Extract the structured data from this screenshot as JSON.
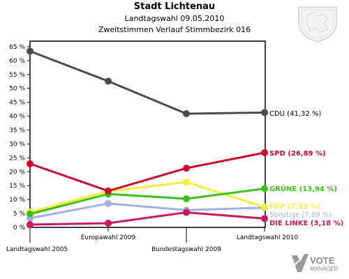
{
  "header": {
    "title": "Stadt Lichtenau",
    "subtitle": "Landtagswahl 09.05.2010",
    "subtitle2": "Zweitstimmen Verlauf Stimmbezirk 016"
  },
  "chart_data": {
    "type": "line",
    "categories": [
      "Landtagswahl 2005",
      "Europawahl 2009",
      "Bundestagswahl 2009",
      "Landtagswahl 2010"
    ],
    "y_ticks": [
      "0 %",
      "5 %",
      "10 %",
      "15 %",
      "20 %",
      "25 %",
      "30 %",
      "35 %",
      "40 %",
      "45 %",
      "50 %",
      "55 %",
      "60 %",
      "65 %"
    ],
    "ylim": [
      0,
      67
    ],
    "grid": false,
    "series": [
      {
        "name": "Sonstige",
        "end_label": "Sonstige (7,09 %)",
        "color": "#a0b0e6",
        "values": [
          3.3,
          8.6,
          6.2,
          7.09
        ]
      },
      {
        "name": "DIE LINKE",
        "end_label": "DIE LINKE (3,18 %)",
        "color": "#c8185e",
        "values": [
          1.0,
          1.5,
          5.4,
          3.18
        ]
      },
      {
        "name": "FDP",
        "end_label": "FDP (7,33 %)",
        "color": "#f2ee3a",
        "values": [
          5.5,
          13.0,
          16.3,
          7.33
        ]
      },
      {
        "name": "GRÜNE",
        "end_label": "GRÜNE (13,94 %)",
        "color": "#3ac01a",
        "values": [
          4.8,
          12.0,
          10.3,
          13.94
        ]
      },
      {
        "name": "SPD",
        "end_label": "SPD (26,89 %)",
        "color": "#cc0a2e",
        "values": [
          22.9,
          13.1,
          21.3,
          26.89
        ]
      },
      {
        "name": "CDU",
        "end_label": "CDU (41,32 %)",
        "color": "#4a4a4a",
        "values": [
          63.4,
          52.6,
          40.9,
          41.32
        ]
      }
    ]
  },
  "icons": {
    "crest": "coat-of-arms-icon",
    "logo": "vote-manager-logo-icon"
  },
  "branding": {
    "logo_text_1": "VOTE",
    "logo_text_2": "MANAGER"
  }
}
